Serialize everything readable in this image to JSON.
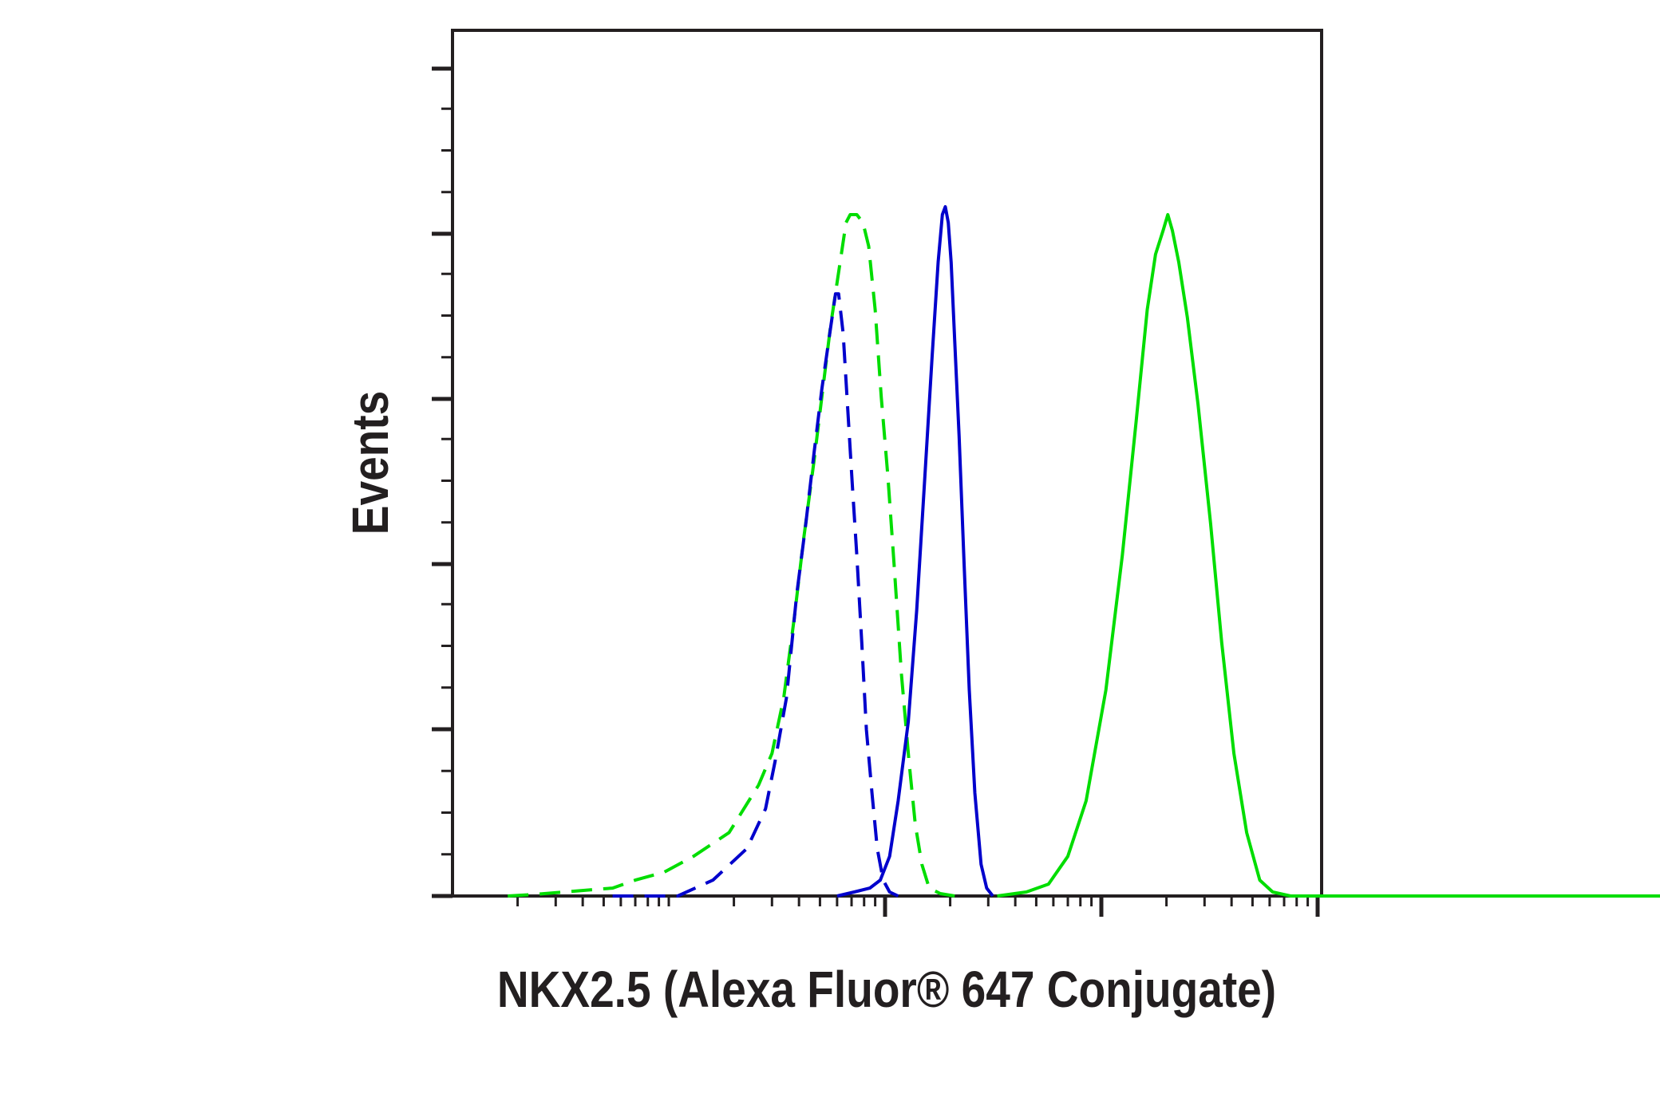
{
  "chart_data": {
    "type": "line",
    "title": "",
    "xlabel": "NKX2.5 (Alexa Fluor® 647 Conjugate)",
    "ylabel": "Events",
    "x_scale": "log",
    "xlim": [
      10,
      100000000
    ],
    "ylim": [
      0,
      100
    ],
    "grid": false,
    "legend": "none",
    "series": [
      {
        "color": "#00dd00",
        "dash": true,
        "points": [
          [
            18,
            0
          ],
          [
            24,
            0.2
          ],
          [
            55,
            1
          ],
          [
            70,
            2
          ],
          [
            95,
            3
          ],
          [
            130,
            5
          ],
          [
            190,
            8
          ],
          [
            260,
            14
          ],
          [
            300,
            18
          ],
          [
            340,
            25
          ],
          [
            380,
            35
          ],
          [
            420,
            45
          ],
          [
            470,
            55
          ],
          [
            510,
            63
          ],
          [
            560,
            72
          ],
          [
            620,
            80
          ],
          [
            660,
            85
          ],
          [
            690,
            86
          ],
          [
            740,
            86
          ],
          [
            790,
            85
          ],
          [
            840,
            82
          ],
          [
            900,
            74
          ],
          [
            960,
            63
          ],
          [
            1030,
            53
          ],
          [
            1100,
            42
          ],
          [
            1190,
            28
          ],
          [
            1290,
            17
          ],
          [
            1380,
            9
          ],
          [
            1480,
            4
          ],
          [
            1600,
            1
          ],
          [
            1800,
            0.3
          ],
          [
            2100,
            0
          ]
        ]
      },
      {
        "color": "#0000cc",
        "dash": true,
        "points": [
          [
            55,
            0
          ],
          [
            110,
            0
          ],
          [
            160,
            2
          ],
          [
            230,
            6
          ],
          [
            280,
            11
          ],
          [
            310,
            17
          ],
          [
            350,
            25
          ],
          [
            390,
            38
          ],
          [
            430,
            47
          ],
          [
            470,
            56
          ],
          [
            510,
            64
          ],
          [
            555,
            71
          ],
          [
            590,
            76
          ],
          [
            610,
            76
          ],
          [
            640,
            71
          ],
          [
            670,
            62
          ],
          [
            705,
            52
          ],
          [
            740,
            43
          ],
          [
            780,
            32
          ],
          [
            820,
            21
          ],
          [
            870,
            13
          ],
          [
            920,
            6
          ],
          [
            980,
            2
          ],
          [
            1050,
            0.5
          ],
          [
            1150,
            0
          ]
        ]
      },
      {
        "color": "#0000cc",
        "dash": false,
        "points": [
          [
            600,
            0
          ],
          [
            720,
            0.5
          ],
          [
            850,
            1
          ],
          [
            950,
            2
          ],
          [
            1050,
            5
          ],
          [
            1150,
            12
          ],
          [
            1280,
            22
          ],
          [
            1400,
            36
          ],
          [
            1520,
            52
          ],
          [
            1650,
            68
          ],
          [
            1760,
            80
          ],
          [
            1840,
            86
          ],
          [
            1900,
            87
          ],
          [
            1960,
            85
          ],
          [
            2020,
            80
          ],
          [
            2100,
            70
          ],
          [
            2200,
            58
          ],
          [
            2320,
            42
          ],
          [
            2450,
            26
          ],
          [
            2600,
            13
          ],
          [
            2780,
            4
          ],
          [
            2950,
            1
          ],
          [
            3150,
            0
          ]
        ]
      },
      {
        "color": "#00dd00",
        "dash": false,
        "points": [
          [
            3300,
            0
          ],
          [
            4500,
            0.5
          ],
          [
            5700,
            1.5
          ],
          [
            7000,
            5
          ],
          [
            8500,
            12
          ],
          [
            10500,
            26
          ],
          [
            12500,
            43
          ],
          [
            14500,
            60
          ],
          [
            16300,
            74
          ],
          [
            17800,
            81
          ],
          [
            19300,
            84
          ],
          [
            20300,
            86
          ],
          [
            21300,
            84
          ],
          [
            22800,
            80
          ],
          [
            25000,
            73
          ],
          [
            28000,
            62
          ],
          [
            32000,
            47
          ],
          [
            36000,
            32
          ],
          [
            41000,
            18
          ],
          [
            47000,
            8
          ],
          [
            54000,
            2
          ],
          [
            62000,
            0.5
          ],
          [
            75000,
            0
          ],
          [
            100000000,
            0
          ]
        ]
      }
    ]
  }
}
